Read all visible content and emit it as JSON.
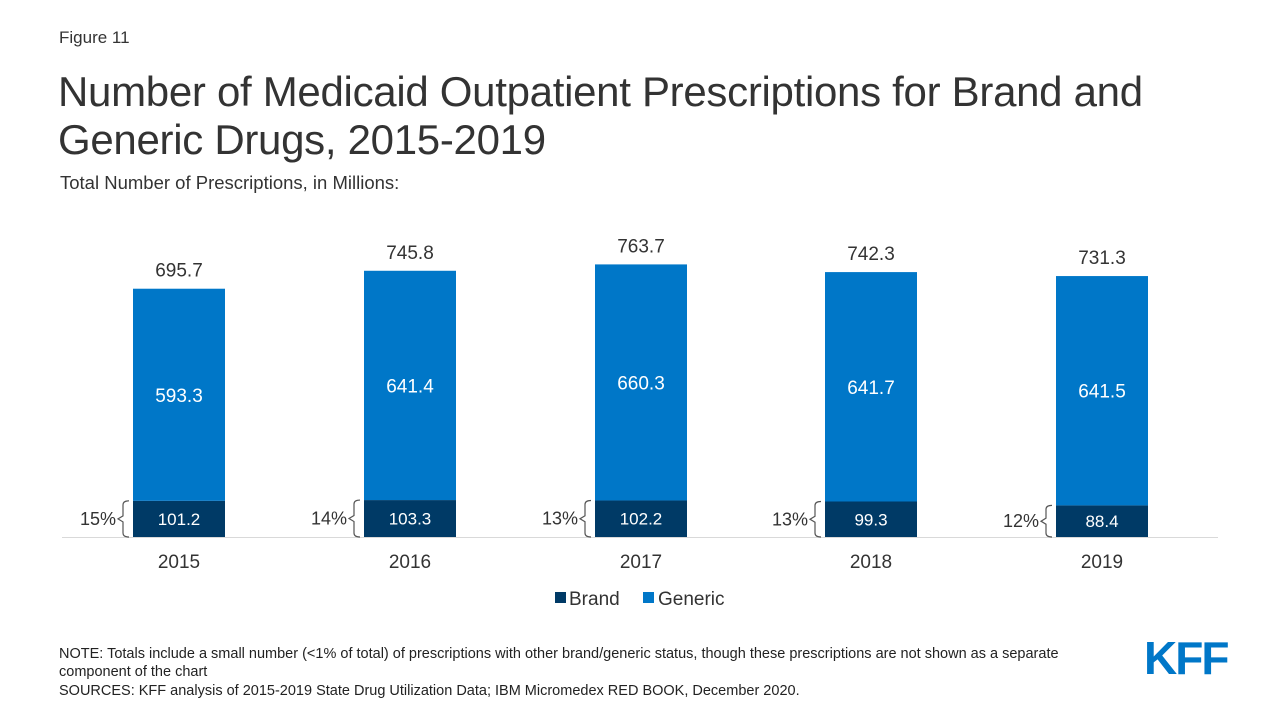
{
  "figure_label": "Figure 11",
  "colors": {
    "brand": "#003a66",
    "generic": "#0077c8",
    "text": "#333333",
    "logo": "#0077c8"
  },
  "footer": {
    "note": "NOTE: Totals include a small number (<1% of total) of prescriptions with other brand/generic status, though these prescriptions are not shown as a separate component of the chart",
    "sources": "SOURCES: KFF analysis of 2015-2019 State Drug Utilization Data; IBM Micromedex RED BOOK, December 2020.",
    "logo": "KFF"
  },
  "chart_data": {
    "type": "bar",
    "stacked": true,
    "title": "Number of Medicaid Outpatient Prescriptions for Brand and Generic Drugs, 2015-2019",
    "subtitle": "Total Number of Prescriptions, in Millions:",
    "categories": [
      "2015",
      "2016",
      "2017",
      "2018",
      "2019"
    ],
    "series": [
      {
        "name": "Brand",
        "values": [
          101.2,
          103.3,
          102.2,
          99.3,
          88.4
        ]
      },
      {
        "name": "Generic",
        "values": [
          593.3,
          641.4,
          660.3,
          641.7,
          641.5
        ]
      }
    ],
    "totals": [
      "695.7",
      "745.8",
      "763.7",
      "742.3",
      "731.3"
    ],
    "brand_share": [
      "15%",
      "14%",
      "13%",
      "13%",
      "12%"
    ],
    "legend": {
      "position": "bottom",
      "entries": [
        "Brand",
        "Generic"
      ]
    },
    "grid": false,
    "ylim": [
      0,
      800
    ]
  }
}
